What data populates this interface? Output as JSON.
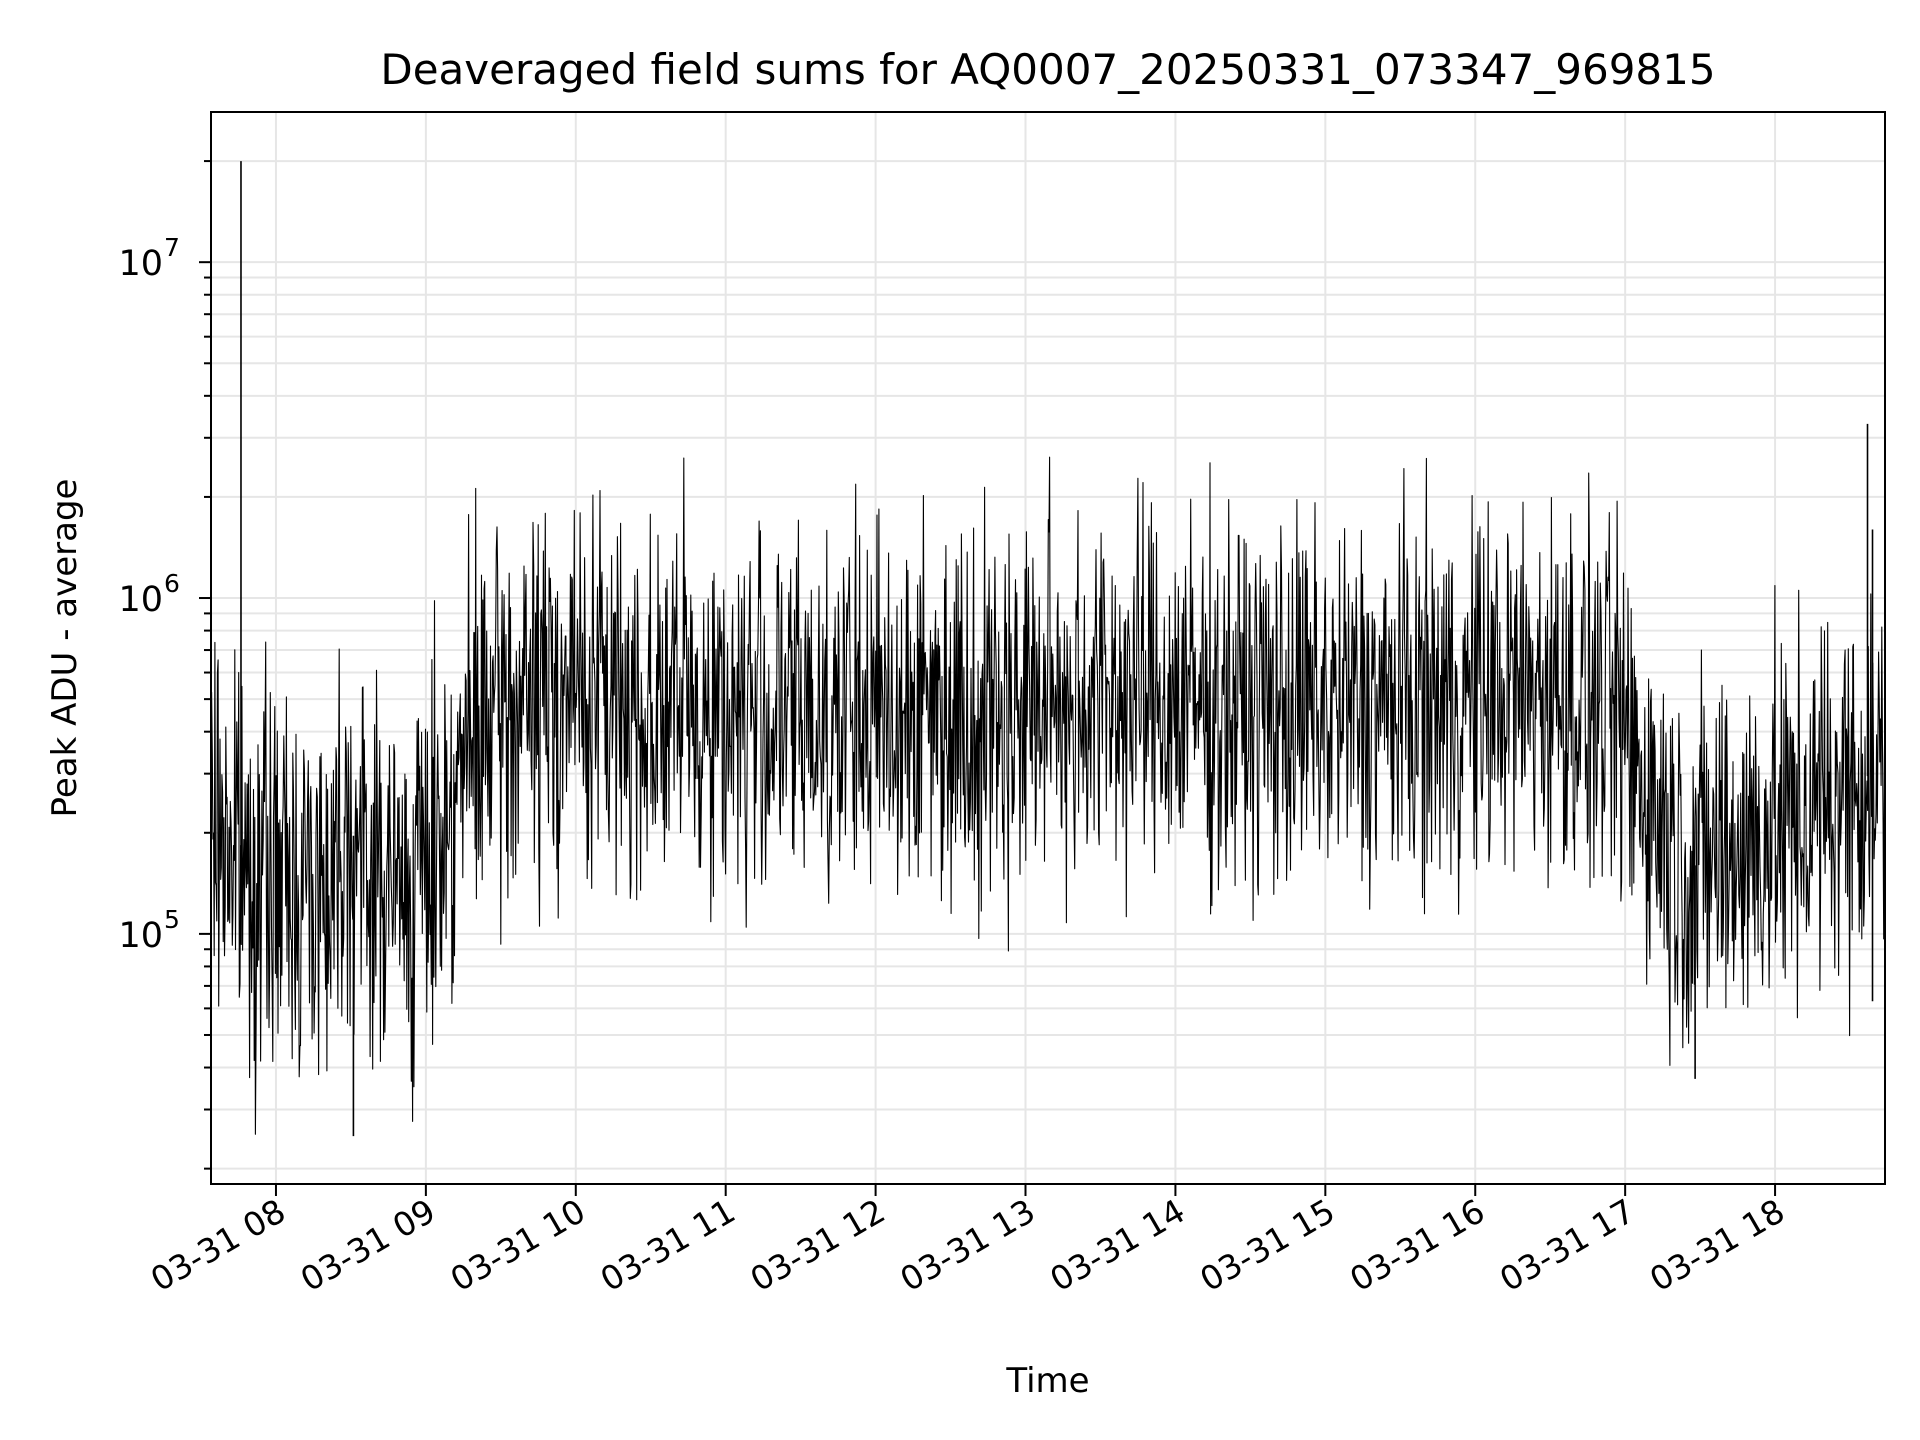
{
  "chart_data": {
    "type": "line",
    "title": "Deaveraged field sums for AQ0007_20250331_073347_969815",
    "xlabel": "Time",
    "ylabel": "Peak ADU - average",
    "yscale": "log",
    "ylim": [
      18000,
      28000000
    ],
    "xlim": [
      "2025-03-31 07:34",
      "2025-03-31 18:44"
    ],
    "grid": true,
    "line_color": "#000000",
    "grid_color": "#e6e6e6",
    "x_ticks": [
      {
        "value": "2025-03-31 08:00",
        "label": "03-31 08"
      },
      {
        "value": "2025-03-31 09:00",
        "label": "03-31 09"
      },
      {
        "value": "2025-03-31 10:00",
        "label": "03-31 10"
      },
      {
        "value": "2025-03-31 11:00",
        "label": "03-31 11"
      },
      {
        "value": "2025-03-31 12:00",
        "label": "03-31 12"
      },
      {
        "value": "2025-03-31 13:00",
        "label": "03-31 13"
      },
      {
        "value": "2025-03-31 14:00",
        "label": "03-31 14"
      },
      {
        "value": "2025-03-31 15:00",
        "label": "03-31 15"
      },
      {
        "value": "2025-03-31 16:00",
        "label": "03-31 16"
      },
      {
        "value": "2025-03-31 17:00",
        "label": "03-31 17"
      },
      {
        "value": "2025-03-31 18:00",
        "label": "03-31 18"
      }
    ],
    "y_ticks": [
      {
        "value": 100000,
        "base": "10",
        "exp": "5"
      },
      {
        "value": 1000000,
        "base": "10",
        "exp": "6"
      },
      {
        "value": 10000000,
        "base": "10",
        "exp": "7"
      }
    ],
    "series": [
      {
        "x": [
          "2025-03-31 07:34",
          "2025-03-31 07:40",
          "2025-03-31 07:46",
          "2025-03-31 07:52",
          "2025-03-31 07:58",
          "2025-03-31 08:04",
          "2025-03-31 08:10",
          "2025-03-31 08:16",
          "2025-03-31 08:22",
          "2025-03-31 08:28",
          "2025-03-31 08:34",
          "2025-03-31 08:40",
          "2025-03-31 08:46",
          "2025-03-31 08:52",
          "2025-03-31 08:58",
          "2025-03-31 09:04",
          "2025-03-31 09:10",
          "2025-03-31 09:16",
          "2025-03-31 09:22",
          "2025-03-31 09:28",
          "2025-03-31 09:34",
          "2025-03-31 09:40",
          "2025-03-31 09:46",
          "2025-03-31 09:52",
          "2025-03-31 09:58",
          "2025-03-31 10:10",
          "2025-03-31 10:25",
          "2025-03-31 10:40",
          "2025-03-31 10:55",
          "2025-03-31 11:10",
          "2025-03-31 11:25",
          "2025-03-31 11:40",
          "2025-03-31 11:55",
          "2025-03-31 12:10",
          "2025-03-31 12:25",
          "2025-03-31 12:40",
          "2025-03-31 12:55",
          "2025-03-31 13:10",
          "2025-03-31 13:25",
          "2025-03-31 13:40",
          "2025-03-31 13:55",
          "2025-03-31 14:10",
          "2025-03-31 14:25",
          "2025-03-31 14:40",
          "2025-03-31 14:55",
          "2025-03-31 15:10",
          "2025-03-31 15:25",
          "2025-03-31 15:40",
          "2025-03-31 15:55",
          "2025-03-31 16:10",
          "2025-03-31 16:25",
          "2025-03-31 16:40",
          "2025-03-31 16:55",
          "2025-03-31 17:04",
          "2025-03-31 17:10",
          "2025-03-31 17:16",
          "2025-03-31 17:22",
          "2025-03-31 17:28",
          "2025-03-31 17:34",
          "2025-03-31 17:40",
          "2025-03-31 17:46",
          "2025-03-31 17:52",
          "2025-03-31 17:58",
          "2025-03-31 18:04",
          "2025-03-31 18:10",
          "2025-03-31 18:16",
          "2025-03-31 18:22",
          "2025-03-31 18:28",
          "2025-03-31 18:34",
          "2025-03-31 18:40",
          "2025-03-31 18:44"
        ],
        "y": [
          220000,
          200000,
          160000,
          150000,
          150000,
          140000,
          145000,
          140000,
          150000,
          240000,
          160000,
          150000,
          140000,
          130000,
          150000,
          190000,
          250000,
          330000,
          390000,
          420000,
          450000,
          490000,
          520000,
          540000,
          530000,
          510000,
          470000,
          480000,
          460000,
          450000,
          440000,
          460000,
          450000,
          470000,
          480000,
          460000,
          470000,
          500000,
          510000,
          520000,
          500000,
          490000,
          470000,
          480000,
          460000,
          470000,
          480000,
          490000,
          500000,
          520000,
          540000,
          510000,
          450000,
          330000,
          260000,
          200000,
          170000,
          160000,
          170000,
          175000,
          180000,
          185000,
          200000,
          210000,
          220000,
          230000,
          250000,
          270000,
          290000,
          300000,
          280000
        ],
        "spikes": [
          {
            "x": "2025-03-31 07:46",
            "y": 20000000
          },
          {
            "x": "2025-03-31 08:31",
            "y": 25000
          },
          {
            "x": "2025-03-31 18:37",
            "y": 3300000
          },
          {
            "x": "2025-03-31 18:39",
            "y": 1600000
          },
          {
            "x": "2025-03-31 17:28",
            "y": 37000
          },
          {
            "x": "2025-03-31 18:39",
            "y": 63000
          }
        ]
      }
    ]
  }
}
